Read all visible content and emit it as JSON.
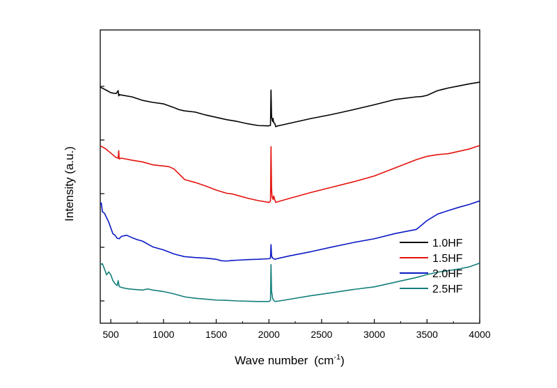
{
  "chart_data": {
    "type": "line",
    "title": "",
    "xlabel": "Wave number",
    "xlabel_unit": "(cm",
    "xlabel_unit_sup": "-1",
    "xlabel_unit_end": ")",
    "ylabel": "Intensity (a.u.)",
    "xlim": [
      400,
      4000
    ],
    "ylim": [
      0,
      100
    ],
    "x_ticks": [
      "500",
      "1000",
      "1500",
      "2000",
      "2500",
      "3000",
      "3500",
      "4000"
    ],
    "y_ticks_labels": false,
    "grid": false,
    "legend_position": "bottom-right",
    "series": [
      {
        "name": "1.0HF",
        "color": "#000000",
        "x": [
          400,
          450,
          500,
          550,
          570,
          575,
          580,
          600,
          700,
          800,
          900,
          1000,
          1100,
          1150,
          1200,
          1300,
          1400,
          1500,
          1600,
          1700,
          1800,
          1900,
          2000,
          2015,
          2020,
          2025,
          2035,
          2040,
          2045,
          2055,
          2060,
          2065,
          2075,
          2100,
          2200,
          2400,
          2600,
          2800,
          3000,
          3200,
          3400,
          3450,
          3500,
          3600,
          3700,
          3800,
          3900,
          4000
        ],
        "y": [
          80.5,
          79.6,
          78.6,
          78.3,
          79.3,
          77.5,
          78.0,
          77.8,
          77.2,
          76.0,
          75.3,
          74.8,
          73.5,
          72.8,
          72.4,
          72.0,
          71.0,
          70.2,
          69.4,
          68.8,
          68.0,
          67.4,
          67.3,
          67.5,
          79.5,
          70.5,
          68.8,
          69.8,
          68.4,
          68.2,
          67.6,
          67.0,
          67.2,
          67.4,
          68.2,
          69.8,
          71.2,
          72.8,
          74.5,
          76.3,
          77.2,
          77.3,
          77.7,
          79.3,
          80.2,
          80.9,
          81.6,
          82.2
        ]
      },
      {
        "name": "1.5HF",
        "color": "#e3120b",
        "x": [
          400,
          450,
          500,
          550,
          570,
          575,
          580,
          600,
          700,
          800,
          900,
          1000,
          1050,
          1100,
          1200,
          1300,
          1400,
          1500,
          1600,
          1650,
          1700,
          1800,
          1900,
          2000,
          2015,
          2020,
          2025,
          2030,
          2040,
          2045,
          2055,
          2065,
          2075,
          2100,
          2200,
          2400,
          2600,
          2800,
          3000,
          3200,
          3400,
          3500,
          3600,
          3700,
          3800,
          3900,
          4000
        ],
        "y": [
          60.5,
          59.5,
          58.0,
          56.5,
          56.3,
          58.8,
          56.0,
          56.3,
          55.6,
          55.0,
          54.0,
          53.6,
          53.4,
          52.6,
          49.0,
          48.0,
          46.8,
          45.4,
          44.3,
          44.1,
          43.6,
          42.6,
          41.8,
          41.2,
          41.6,
          60.2,
          46.0,
          43.0,
          42.2,
          43.4,
          42.2,
          41.2,
          41.3,
          41.6,
          42.6,
          44.6,
          46.4,
          48.2,
          50.2,
          53.0,
          55.8,
          56.9,
          57.5,
          57.8,
          58.6,
          59.4,
          60.6
        ]
      },
      {
        "name": "2.0HF",
        "color": "#0a18c4",
        "x": [
          400,
          410,
          420,
          440,
          460,
          480,
          500,
          520,
          540,
          560,
          580,
          600,
          650,
          700,
          750,
          800,
          900,
          1000,
          1100,
          1200,
          1300,
          1400,
          1500,
          1550,
          1600,
          1650,
          1700,
          1800,
          1900,
          2000,
          2015,
          2020,
          2025,
          2035,
          2045,
          2060,
          2075,
          2100,
          2200,
          2400,
          2600,
          2800,
          3000,
          3200,
          3400,
          3450,
          3500,
          3600,
          3700,
          3800,
          3900,
          4000
        ],
        "y": [
          40.5,
          41.0,
          38.0,
          37.5,
          36.0,
          34.5,
          32.5,
          30.5,
          30.0,
          29.0,
          28.8,
          29.6,
          30.0,
          29.2,
          28.5,
          28.0,
          26.0,
          25.0,
          23.6,
          22.7,
          22.4,
          22.2,
          21.8,
          21.3,
          21.2,
          21.4,
          21.5,
          21.7,
          21.8,
          22.0,
          22.2,
          26.8,
          23.0,
          22.2,
          22.0,
          21.8,
          22.0,
          22.2,
          23.0,
          24.4,
          26.0,
          27.5,
          28.8,
          30.6,
          32.0,
          33.5,
          35.0,
          37.2,
          38.4,
          39.5,
          40.5,
          41.7
        ]
      },
      {
        "name": "2.5HF",
        "color": "#137e7a",
        "x": [
          400,
          420,
          440,
          460,
          480,
          500,
          520,
          540,
          560,
          570,
          580,
          600,
          650,
          700,
          800,
          850,
          900,
          1000,
          1100,
          1200,
          1300,
          1400,
          1500,
          1600,
          1700,
          1800,
          1900,
          2000,
          2015,
          2020,
          2025,
          2035,
          2045,
          2060,
          2075,
          2100,
          2200,
          2400,
          2600,
          2800,
          3000,
          3200,
          3400,
          3500,
          3600,
          3700,
          3800,
          3900,
          4000
        ],
        "y": [
          20.0,
          20.3,
          18.5,
          16.5,
          17.5,
          16.5,
          14.5,
          13.5,
          12.8,
          14.5,
          12.5,
          12.2,
          11.8,
          11.6,
          11.3,
          11.7,
          11.3,
          10.8,
          10.0,
          9.0,
          8.5,
          8.2,
          7.9,
          7.8,
          7.6,
          7.5,
          7.4,
          7.4,
          7.8,
          20.0,
          11.0,
          8.5,
          7.8,
          7.4,
          7.5,
          7.6,
          8.2,
          9.4,
          10.4,
          11.5,
          12.4,
          14.0,
          15.6,
          16.6,
          17.4,
          17.9,
          18.5,
          19.2,
          20.5
        ]
      }
    ]
  }
}
